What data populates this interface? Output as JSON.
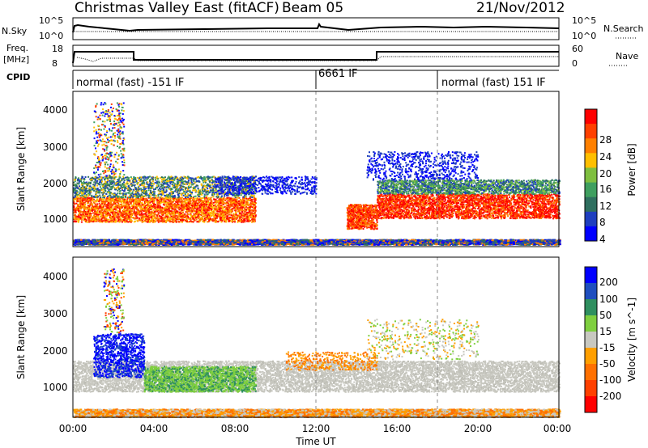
{
  "header": {
    "title": "Christmas Valley East (fitACF)",
    "beam": "Beam 05",
    "date": "21/Nov/2012"
  },
  "summary_panels": {
    "nsky_label": "N.Sky",
    "nsearch_label": "N.Search",
    "nsky_ticks": [
      "10^5",
      "10^0"
    ],
    "nsearch_ticks": [
      "10^5",
      "10^0"
    ],
    "freq_label": "Freq.",
    "freq_unit": "[MHz]",
    "freq_ticks": [
      "18",
      "8"
    ],
    "nave_label": "Nave",
    "nave_ticks": [
      "60",
      "0"
    ],
    "cpid_label": "CPID",
    "cpid_segments": [
      {
        "label": "normal (fast) -151 IF",
        "start_hour": 0
      },
      {
        "label": "6661 IF",
        "start_hour": 12
      },
      {
        "label": "normal (fast) 151 IF",
        "start_hour": 18
      }
    ]
  },
  "chart_data": [
    {
      "type": "heatmap",
      "title": "",
      "xlabel": "Time UT",
      "ylabel": "Slant Range [km]",
      "x_ticks": [
        "00:00",
        "04:00",
        "08:00",
        "12:00",
        "16:00",
        "20:00",
        "00:00"
      ],
      "xlim_hours": [
        0,
        24
      ],
      "y_ticks": [
        "4000",
        "3000",
        "2000",
        "1000"
      ],
      "ylim": [
        180,
        4600
      ],
      "colorbar": {
        "label": "Power [dB]",
        "ticks": [
          "28",
          "24",
          "20",
          "16",
          "12",
          "8",
          "4"
        ],
        "range": [
          0,
          30
        ],
        "colors": [
          "#0000ff",
          "#1f3fbf",
          "#2f6f5f",
          "#3f9f5f",
          "#7fbf3f",
          "#ffbf00",
          "#ff8000",
          "#ff4000",
          "#ff0000"
        ]
      },
      "features": [
        {
          "name": "E-region band",
          "hours": [
            0,
            24
          ],
          "range_km": [
            300,
            400
          ]
        },
        {
          "name": "Main F-region echo (early)",
          "hours": [
            0,
            9
          ],
          "range_km": [
            900,
            2100
          ]
        },
        {
          "name": "Patch",
          "hours": [
            13.5,
            15
          ],
          "range_km": [
            700,
            1400
          ]
        },
        {
          "name": "Main F-region echo (late)",
          "hours": [
            15,
            24
          ],
          "range_km": [
            900,
            1800
          ]
        }
      ]
    },
    {
      "type": "heatmap",
      "title": "",
      "xlabel": "Time UT",
      "ylabel": "Slant Range [km]",
      "x_ticks": [
        "00:00",
        "04:00",
        "08:00",
        "12:00",
        "16:00",
        "20:00",
        "00:00"
      ],
      "xlim_hours": [
        0,
        24
      ],
      "y_ticks": [
        "4000",
        "3000",
        "2000",
        "1000"
      ],
      "ylim": [
        180,
        4600
      ],
      "colorbar": {
        "label": "Velocity [m s^-1]",
        "ticks": [
          "200",
          "100",
          "50",
          "15",
          "-15",
          "-50",
          "-100",
          "-200"
        ],
        "colors": [
          "#0000ff",
          "#1f4fbf",
          "#2f8f5f",
          "#7fcf3f",
          "#c8c8c0",
          "#ff9f00",
          "#ff7000",
          "#ff4000",
          "#ff0000"
        ]
      },
      "features": [
        {
          "name": "Ground scatter (grey)",
          "hours": [
            0,
            24
          ],
          "range_km": [
            900,
            1800
          ]
        },
        {
          "name": "Positive velocity echoes (green)",
          "hours": [
            3.5,
            9
          ],
          "range_km": [
            900,
            1600
          ]
        },
        {
          "name": "Strong positive (blue)",
          "hours": [
            1,
            3.5
          ],
          "range_km": [
            1300,
            2500
          ]
        },
        {
          "name": "Negative velocity (orange)",
          "hours": [
            0,
            24
          ],
          "range_km": [
            200,
            400
          ]
        }
      ]
    }
  ]
}
